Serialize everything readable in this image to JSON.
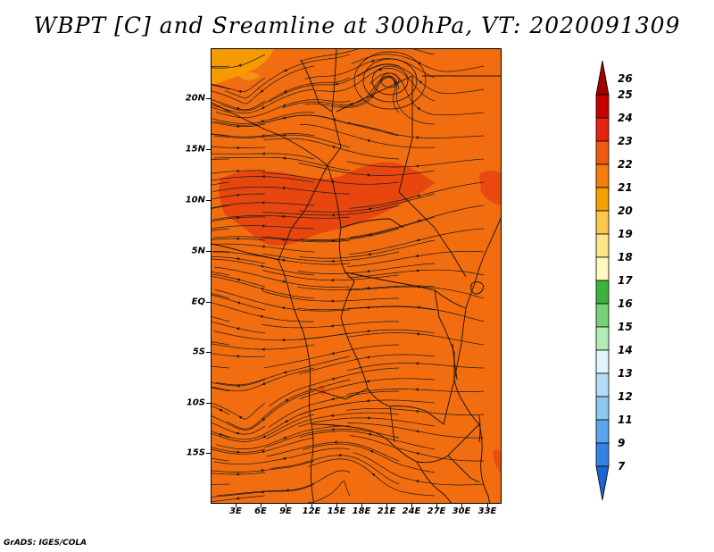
{
  "title": "WBPT [C] and Sreamline at 300hPa, VT: 2020091309",
  "credit": "GrADS: IGES/COLA",
  "y_axis_labels": [
    "20N",
    "15N",
    "10N",
    "5N",
    "EQ",
    "5S",
    "10S",
    "15S"
  ],
  "x_axis_labels": [
    "3E",
    "6E",
    "9E",
    "12E",
    "15E",
    "18E",
    "21E",
    "24E",
    "27E",
    "30E",
    "33E"
  ],
  "colorbar": {
    "labels": [
      "26",
      "25",
      "24",
      "23",
      "22",
      "21",
      "20",
      "19",
      "18",
      "17",
      "16",
      "15",
      "14",
      "13",
      "12",
      "11",
      "9",
      "7"
    ],
    "colors": [
      "#a50000",
      "#c80000",
      "#e62410",
      "#f05a0f",
      "#f57d0d",
      "#f5a000",
      "#f9c84a",
      "#fde58a",
      "#fff8c0",
      "#3cb43c",
      "#78d278",
      "#b4eab4",
      "#e1f5fa",
      "#b4dcf5",
      "#8cc8f0",
      "#5aa5eb",
      "#3282e6",
      "#1e64d2"
    ]
  },
  "map": {
    "background_color": "#f26d0f",
    "warm_region_color": "#e6400f",
    "cool_region_color": "#f5a000",
    "lat_range": [
      -20,
      24
    ],
    "lon_range": [
      0,
      35
    ]
  }
}
